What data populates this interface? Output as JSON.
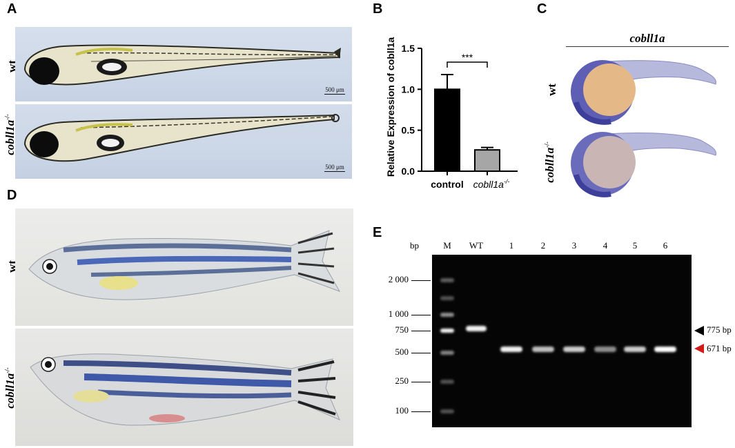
{
  "panels": {
    "a": {
      "letter": "A",
      "rows": [
        {
          "label": "wt",
          "sup": ""
        },
        {
          "label": "cobll1a",
          "sup": "-/-"
        }
      ],
      "scale_label": "500 μm"
    },
    "b": {
      "letter": "B",
      "significance": "***"
    },
    "c": {
      "letter": "C",
      "title": "cobll1a",
      "rows": [
        {
          "label": "wt",
          "sup": ""
        },
        {
          "label": "cobll1a",
          "sup": "-/-"
        }
      ]
    },
    "d": {
      "letter": "D",
      "rows": [
        {
          "label": "wt",
          "sup": ""
        },
        {
          "label": "cobll1a",
          "sup": "-/-"
        }
      ]
    },
    "e": {
      "letter": "E",
      "unit": "bp",
      "lanes": [
        "M",
        "WT",
        "1",
        "2",
        "3",
        "4",
        "5",
        "6"
      ],
      "markers": [
        "2 000",
        "1 000",
        "750",
        "500",
        "250",
        "100"
      ],
      "band_labels": [
        {
          "text": "775 bp",
          "color": "#000000"
        },
        {
          "text": "671 bp",
          "color": "#d11a1a"
        }
      ]
    }
  },
  "chart_data": {
    "type": "bar",
    "categories": [
      "control",
      "cobll1a-/-"
    ],
    "category_labels": [
      {
        "text": "control",
        "sup": ""
      },
      {
        "text": "cobll1a",
        "sup": "-/-"
      }
    ],
    "values": [
      1.0,
      0.26
    ],
    "errors": [
      0.18,
      0.03
    ],
    "colors": [
      "#000000",
      "#a6a6a6"
    ],
    "ylabel": "Relative Expression  of cobll1a",
    "ylim": [
      0,
      1.5
    ],
    "yticks": [
      "0.0",
      "0.5",
      "1.0",
      "1.5"
    ],
    "grid": false
  }
}
